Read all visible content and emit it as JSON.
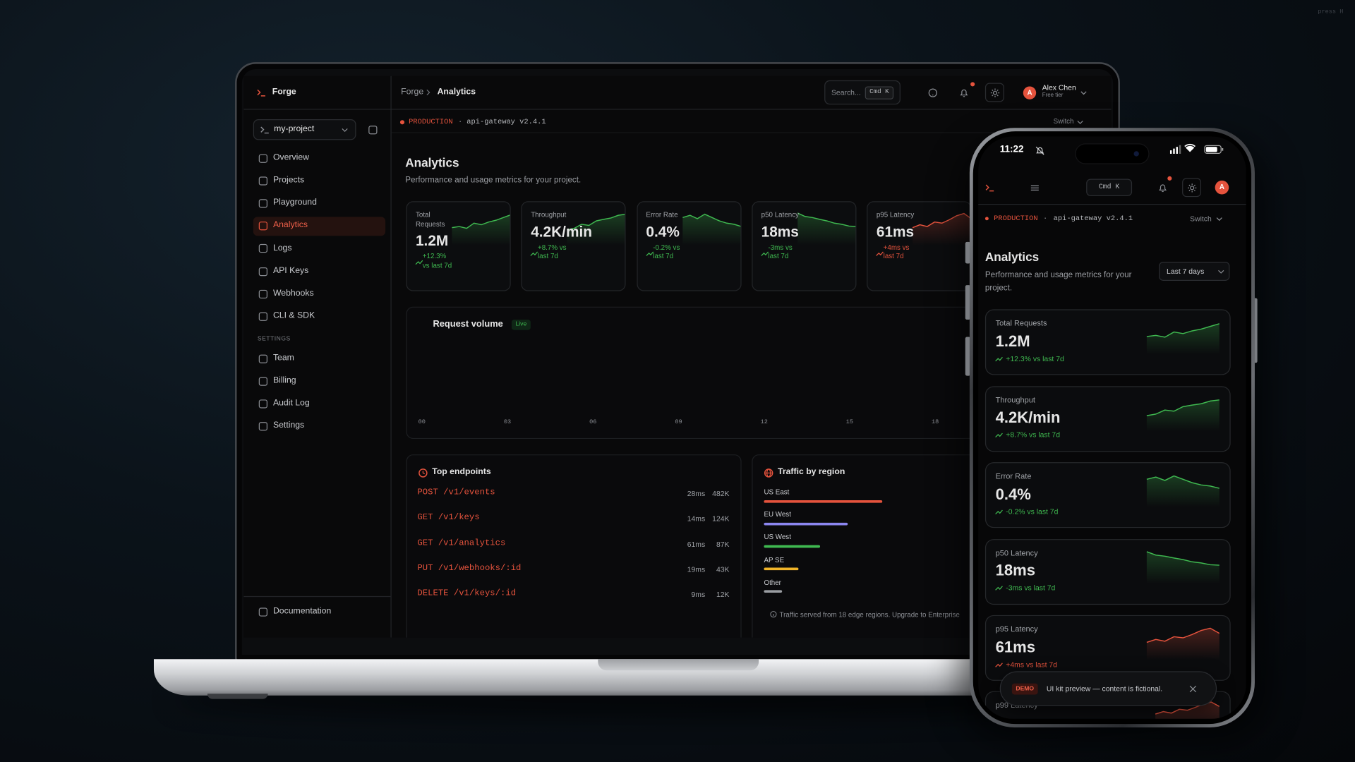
{
  "corner_hint": "press H",
  "env": {
    "label": "PRODUCTION",
    "separator": "·",
    "service": "api-gateway v2.4.1",
    "switch": "Switch"
  },
  "page": {
    "title": "Analytics",
    "subtitle": "Performance and usage metrics for your project."
  },
  "shortcut": "Cmd K",
  "user": {
    "initial": "A",
    "name": "Alex Chen",
    "plan": "Free tier"
  },
  "metrics": [
    {
      "label": "Total Requests",
      "value": "1.2M",
      "delta": "+12.3%",
      "compare": "vs last 7d",
      "color": "#3fb950"
    },
    {
      "label": "Throughput",
      "value": "4.2K/min",
      "delta": "+8.7%",
      "compare": "vs last 7d",
      "color": "#3fb950"
    },
    {
      "label": "Error Rate",
      "value": "0.4%",
      "delta": "-0.2%",
      "compare": "vs last 7d",
      "color": "#3fb950"
    },
    {
      "label": "p50 Latency",
      "value": "18ms",
      "delta": "-3ms",
      "compare": "vs last 7d",
      "color": "#3fb950"
    },
    {
      "label": "p95 Latency",
      "value": "61ms",
      "delta": "+4ms",
      "compare": "vs last 7d",
      "color": "#e5533d"
    }
  ],
  "laptop": {
    "sidebar": {
      "brand": "Forge",
      "project": "my-project",
      "nav": [
        {
          "label": "Overview",
          "active": false
        },
        {
          "label": "Projects",
          "active": false
        },
        {
          "label": "Playground",
          "active": false
        },
        {
          "label": "Analytics",
          "active": true
        },
        {
          "label": "Logs",
          "active": false
        },
        {
          "label": "API Keys",
          "active": false
        },
        {
          "label": "Webhooks",
          "active": false
        },
        {
          "label": "CLI & SDK",
          "active": false
        }
      ],
      "settings_heading": "SETTINGS",
      "settings_nav": [
        "Team",
        "Billing",
        "Audit Log",
        "Settings"
      ],
      "footer_link": "Documentation"
    },
    "topbar": {
      "breadcrumb": [
        "Forge",
        "Analytics"
      ],
      "search": "Search..."
    },
    "request_volume": {
      "title": "Request volume",
      "badge": "Live",
      "xticks": [
        "00",
        "03",
        "06",
        "09",
        "12",
        "15",
        "18"
      ]
    },
    "top_endpoints": {
      "title": "Top endpoints",
      "rows": [
        {
          "endpoint": "POST /v1/events",
          "latency": "28ms",
          "count": "482K"
        },
        {
          "endpoint": "GET /v1/keys",
          "latency": "14ms",
          "count": "124K"
        },
        {
          "endpoint": "GET /v1/analytics",
          "latency": "61ms",
          "count": "87K"
        },
        {
          "endpoint": "PUT /v1/webhooks/:id",
          "latency": "19ms",
          "count": "43K"
        },
        {
          "endpoint": "DELETE /v1/keys/:id",
          "latency": "9ms",
          "count": "12K"
        }
      ]
    },
    "traffic_by_region": {
      "title": "Traffic by region",
      "regions": [
        {
          "name": "US East",
          "color": "#e5533d"
        },
        {
          "name": "EU West",
          "color": "#8b86f0"
        },
        {
          "name": "US West",
          "color": "#3fb950"
        },
        {
          "name": "AP SE",
          "color": "#f0b429"
        },
        {
          "name": "Other",
          "color": "#9a9da2"
        }
      ],
      "footnote": "Traffic served from 18 edge regions. Upgrade to Enterprise"
    }
  },
  "phone": {
    "time": "11:22",
    "range": "Last 7 days",
    "partial_card": "p99 Latency",
    "toast": {
      "badge": "DEMO",
      "text": "UI kit preview — content is fictional."
    }
  }
}
